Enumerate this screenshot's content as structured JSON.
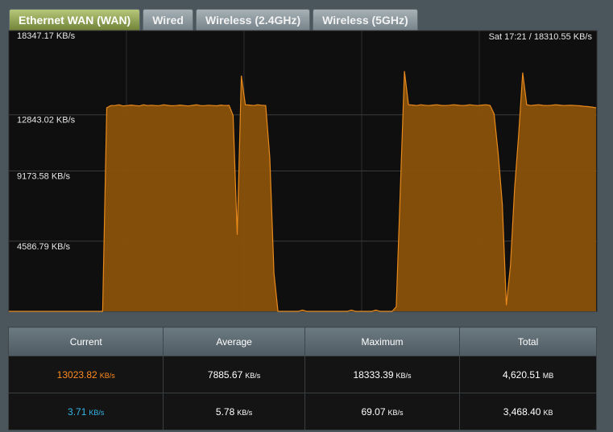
{
  "tabs": [
    "Ethernet WAN (WAN)",
    "Wired",
    "Wireless (2.4GHz)",
    "Wireless (5GHz)"
  ],
  "chart_data": {
    "type": "area",
    "annotation": "Sat 17:21 / 18310.55 KB/s",
    "ylim": [
      0,
      18347.17
    ],
    "yticks": [
      {
        "value": 4586.79,
        "label": "4586.79 KB/s"
      },
      {
        "value": 9173.58,
        "label": "9173.58 KB/s"
      },
      {
        "value": 12843.02,
        "label": "12843.02 KB/s"
      },
      {
        "value": 18347.17,
        "label": "18347.17 KB/s"
      }
    ],
    "grid": true,
    "series": [
      {
        "color": "#e8891c",
        "values": [
          0,
          0,
          0,
          0,
          0,
          0,
          0,
          0,
          0,
          0,
          0,
          0,
          0,
          0,
          0,
          0,
          0,
          0,
          0,
          0,
          0,
          0,
          0,
          0,
          13300,
          13450,
          13450,
          13500,
          13420,
          13450,
          13480,
          13450,
          13420,
          13500,
          13450,
          13470,
          13440,
          13450,
          13500,
          13460,
          13430,
          13450,
          13480,
          13450,
          13420,
          13460,
          13500,
          13450,
          13440,
          13470,
          13450,
          13430,
          13480,
          13450,
          13460,
          12800,
          5000,
          15400,
          13500,
          13480,
          13450,
          13500,
          13470,
          13450,
          10000,
          2500,
          0,
          0,
          0,
          0,
          0,
          0,
          80,
          0,
          0,
          0,
          0,
          0,
          0,
          0,
          0,
          0,
          0,
          0,
          80,
          0,
          0,
          0,
          0,
          0,
          80,
          0,
          0,
          0,
          0,
          300,
          8000,
          15700,
          13500,
          13480,
          13450,
          13500,
          13470,
          13450,
          13480,
          13500,
          13460,
          13450,
          13470,
          13500,
          13480,
          13450,
          13460,
          13500,
          13470,
          13450,
          13480,
          13500,
          13460,
          12900,
          10300,
          7000,
          400,
          3000,
          8000,
          11500,
          15600,
          13500,
          13450,
          13480,
          13500,
          13460,
          13450,
          13470,
          13500,
          13480,
          13450,
          13460,
          13470,
          13450,
          13430,
          13400,
          13380,
          13350,
          13300
        ]
      }
    ]
  },
  "table": {
    "headers": [
      "Current",
      "Average",
      "Maximum",
      "Total"
    ],
    "rows": [
      [
        {
          "value": "13023.82",
          "unit": "KB/s"
        },
        {
          "value": "7885.67",
          "unit": "KB/s"
        },
        {
          "value": "18333.39",
          "unit": "KB/s"
        },
        {
          "value": "4,620.51",
          "unit": "MB"
        }
      ],
      [
        {
          "value": "3.71",
          "unit": "KB/s"
        },
        {
          "value": "5.78",
          "unit": "KB/s"
        },
        {
          "value": "69.07",
          "unit": "KB/s"
        },
        {
          "value": "3,468.40",
          "unit": "KB"
        }
      ]
    ]
  }
}
